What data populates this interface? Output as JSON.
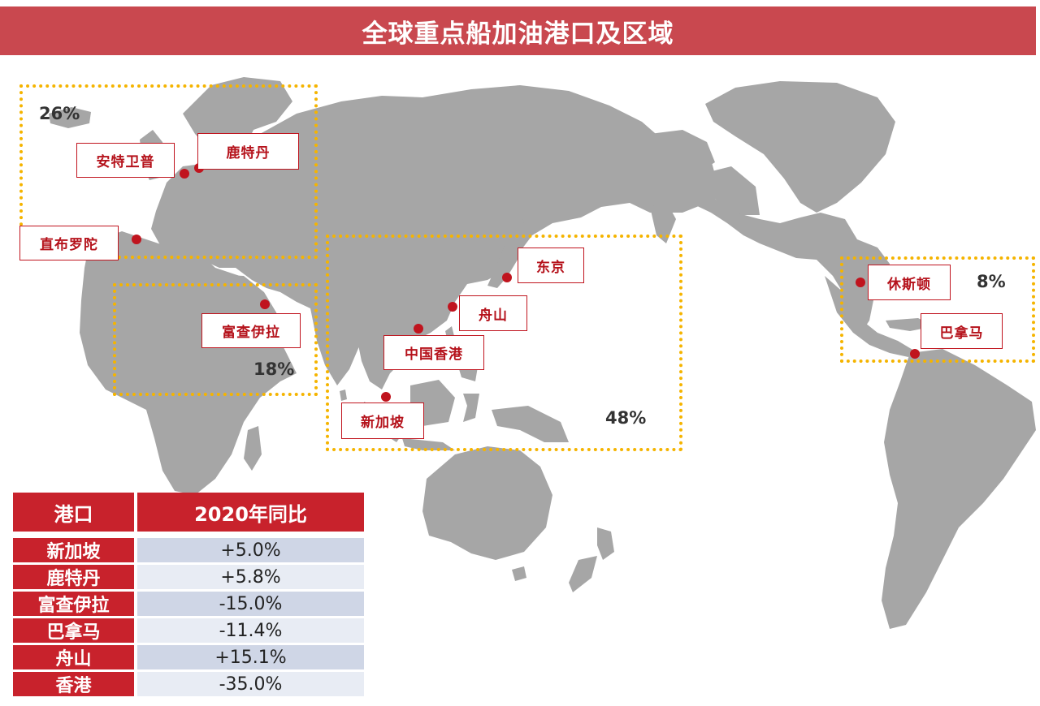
{
  "title": "全球重点船加油港口及区域",
  "regions": [
    {
      "id": "europe",
      "share": "26%"
    },
    {
      "id": "middle-east",
      "share": "18%"
    },
    {
      "id": "asia-pacific",
      "share": "48%"
    },
    {
      "id": "americas",
      "share": "8%"
    }
  ],
  "ports": {
    "antwerp": "安特卫普",
    "rotterdam": "鹿特丹",
    "gibraltar": "直布罗陀",
    "fujairah": "富查伊拉",
    "tokyo": "东京",
    "zhoushan": "舟山",
    "hongkong": "中国香港",
    "singapore": "新加坡",
    "houston": "休斯顿",
    "panama": "巴拿马"
  },
  "table": {
    "headers": [
      "港口",
      "2020年同比"
    ],
    "rows": [
      {
        "port": "新加坡",
        "yoy": "+5.0%"
      },
      {
        "port": "鹿特丹",
        "yoy": "+5.8%"
      },
      {
        "port": "富查伊拉",
        "yoy": "-15.0%"
      },
      {
        "port": "巴拿马",
        "yoy": "-11.4%"
      },
      {
        "port": "舟山",
        "yoy": "+15.1%"
      },
      {
        "port": "香港",
        "yoy": "-35.0%"
      }
    ]
  },
  "colors": {
    "title_bg": "#c9484f",
    "land": "#a6a6a6",
    "region_border": "#f5b400",
    "port_red": "#c0141e",
    "table_red": "#c8222c",
    "row_blue": "#cfd6e6",
    "row_light": "#e8ecf4"
  }
}
